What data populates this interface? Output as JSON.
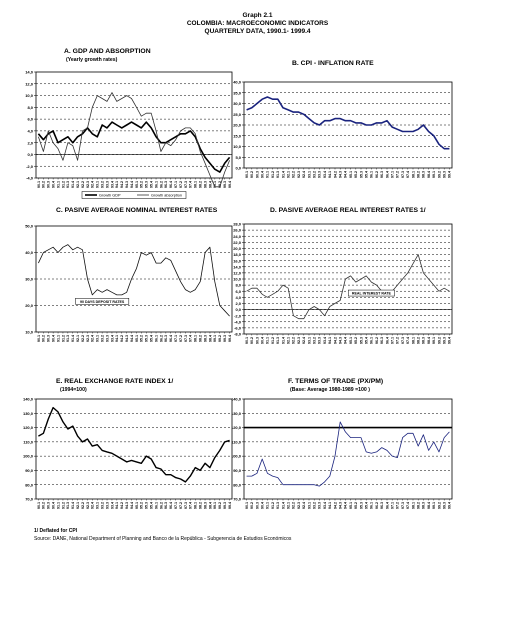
{
  "header": {
    "graph_number": "Graph 2.1",
    "title": "COLOMBIA: MACROECONOMIC INDICATORS",
    "subtitle": "QUARTERLY DATA, 1990.1- 1999.4"
  },
  "panels": {
    "a": {
      "title": "A.  GDP AND ABSORPTION",
      "subtitle": "(Yearly growth rates)"
    },
    "b": {
      "title": "B. CPI - INFLATION RATE",
      "subtitle": ""
    },
    "c": {
      "title": "C.  PASIVE AVERAGE NOMINAL INTEREST RATES",
      "subtitle": ""
    },
    "d": {
      "title": "D.  PASIVE  AVERAGE  REAL  INTEREST  RATES  1/",
      "subtitle": ""
    },
    "e": {
      "title": "E.  REAL EXCHANGE RATE INDEX  1/",
      "subtitle": "(1994=100)"
    },
    "f": {
      "title": "F.  TERMS OF TRADE (PX/PM)",
      "subtitle": "(Base: Average 1980-1989 =100 )"
    }
  },
  "footnotes": {
    "deflated": "1/  Deflated for CPI",
    "source": "Source: DANE, National Department of Planning and Banco de la República - Subgerencia de Estudios Económicos"
  },
  "chart_data": [
    {
      "id": "a",
      "type": "line",
      "title": "A.  GDP AND ABSORPTION",
      "subtitle": "(Yearly growth rates)",
      "ylim": [
        -4,
        14
      ],
      "yticks": [
        "-4,0",
        "-2,0",
        "0,0",
        "2,0",
        "4,0",
        "6,0",
        "8,0",
        "10,0",
        "12,0",
        "14,0"
      ],
      "grid": true,
      "legend": "bottom",
      "x": [
        "90.1",
        "90.2",
        "90.3",
        "90.4",
        "91.1",
        "91.2",
        "91.3",
        "91.4",
        "92.1",
        "92.2",
        "92.3",
        "92.4",
        "93.1",
        "93.2",
        "93.3",
        "93.4",
        "94.1",
        "94.2",
        "94.3",
        "94.4",
        "95.1",
        "95.2",
        "95.3",
        "95.4",
        "96.1",
        "96.2",
        "96.3",
        "96.4",
        "97.1",
        "97.2",
        "97.3",
        "97.4",
        "98.1",
        "98.2",
        "98.3",
        "98.4",
        "99.1",
        "99.2",
        "99.3",
        "99.4"
      ],
      "series": [
        {
          "name": "Growth GDP",
          "values": [
            3.5,
            2.5,
            3.5,
            4.0,
            2.0,
            2.5,
            3.0,
            2.0,
            3.0,
            3.5,
            4.5,
            3.5,
            3.0,
            5.0,
            4.5,
            5.5,
            5.0,
            4.5,
            5.0,
            5.5,
            5.0,
            4.5,
            5.5,
            4.5,
            3.0,
            2.0,
            2.0,
            2.5,
            3.0,
            3.5,
            3.5,
            4.0,
            3.0,
            1.0,
            -0.5,
            -1.5,
            -2.5,
            -3.0,
            -1.5,
            -0.5
          ]
        },
        {
          "name": "Growth absorption",
          "values": [
            3.0,
            0.5,
            4.0,
            2.0,
            1.0,
            -1.0,
            2.0,
            1.5,
            -1.0,
            4.0,
            4.5,
            8.0,
            10.0,
            9.5,
            9.0,
            10.5,
            9.0,
            9.5,
            10.0,
            9.5,
            8.0,
            6.5,
            7.0,
            7.0,
            4.0,
            0.5,
            2.0,
            1.5,
            2.5,
            4.0,
            4.5,
            4.5,
            3.5,
            0.5,
            -1.5,
            -3.5,
            -5.5,
            -5.5,
            -3.0,
            -1.0
          ]
        }
      ]
    },
    {
      "id": "b",
      "type": "line",
      "title": "B. CPI - INFLATION RATE",
      "subtitle": "",
      "ylim": [
        0,
        40
      ],
      "yticks": [
        "0,0",
        "5,0",
        "10,0",
        "15,0",
        "20,0",
        "25,0",
        "30,0",
        "35,0",
        "40,0"
      ],
      "grid": true,
      "x": [
        "90.1",
        "90.2",
        "90.3",
        "90.4",
        "91.1",
        "91.2",
        "91.3",
        "91.4",
        "92.1",
        "92.2",
        "92.3",
        "92.4",
        "93.1",
        "93.2",
        "93.3",
        "93.4",
        "94.1",
        "94.2",
        "94.3",
        "94.4",
        "95.1",
        "95.2",
        "95.3",
        "95.4",
        "96.1",
        "96.2",
        "96.3",
        "96.4",
        "97.1",
        "97.2",
        "97.3",
        "97.4",
        "98.1",
        "98.2",
        "98.3",
        "98.4",
        "99.1",
        "99.2",
        "99.3",
        "99.4"
      ],
      "series": [
        {
          "name": "",
          "values": [
            27,
            28,
            30,
            32,
            33,
            32,
            32,
            28,
            27,
            26,
            26,
            25,
            23,
            21,
            20,
            22,
            22,
            23,
            23,
            22,
            22,
            21,
            21,
            20,
            20,
            21,
            21,
            22,
            19,
            18,
            17,
            17,
            17,
            18,
            20,
            17,
            15,
            11,
            9,
            9
          ]
        }
      ]
    },
    {
      "id": "c",
      "type": "line",
      "title": "C.  PASIVE AVERAGE NOMINAL INTEREST RATES",
      "subtitle": "",
      "ylim": [
        10,
        50
      ],
      "yticks": [
        "10,0",
        "20,0",
        "30,0",
        "40,0",
        "50,0"
      ],
      "grid": true,
      "annotations": [
        "90 DAYS DEPOSIT RATES"
      ],
      "x": [
        "90.1",
        "90.2",
        "90.3",
        "90.4",
        "91.1",
        "91.2",
        "91.3",
        "91.4",
        "92.1",
        "92.2",
        "92.3",
        "92.4",
        "93.1",
        "93.2",
        "93.3",
        "93.4",
        "94.1",
        "94.2",
        "94.3",
        "94.4",
        "95.1",
        "95.2",
        "95.3",
        "95.4",
        "96.1",
        "96.2",
        "96.3",
        "96.4",
        "97.1",
        "97.2",
        "97.3",
        "97.4",
        "98.1",
        "98.2",
        "98.3",
        "98.4",
        "99.1",
        "99.2",
        "99.3",
        "99.4"
      ],
      "series": [
        {
          "name": "90 DAYS DEPOSIT RATES",
          "values": [
            36,
            40,
            41,
            42,
            40,
            42,
            43,
            41,
            42,
            41,
            30,
            24,
            26,
            25,
            26,
            25,
            24,
            24,
            25,
            30,
            34,
            40,
            39,
            40,
            36,
            36,
            38,
            37,
            33,
            29,
            26,
            25,
            26,
            29,
            40,
            42,
            29,
            20,
            18,
            16
          ]
        }
      ]
    },
    {
      "id": "d",
      "type": "line",
      "title": "D.  PASIVE  AVERAGE  REAL  INTEREST  RATES  1/",
      "subtitle": "",
      "ylim": [
        -8,
        28
      ],
      "yticks": [
        "-8,0",
        "-6,0",
        "-4,0",
        "-2,0",
        "0,0",
        "2,0",
        "4,0",
        "6,0",
        "8,0",
        "10,0",
        "12,0",
        "14,0",
        "16,0",
        "18,0",
        "20,0",
        "22,0",
        "24,0",
        "26,0",
        "28,0"
      ],
      "grid": true,
      "annotations": [
        "REAL INTEREST RATE"
      ],
      "x": [
        "90.1",
        "90.2",
        "90.3",
        "90.4",
        "91.1",
        "91.2",
        "91.3",
        "91.4",
        "92.1",
        "92.2",
        "92.3",
        "92.4",
        "93.1",
        "93.2",
        "93.3",
        "93.4",
        "94.1",
        "94.2",
        "94.3",
        "94.4",
        "95.1",
        "95.2",
        "95.3",
        "95.4",
        "96.1",
        "96.2",
        "96.3",
        "96.4",
        "97.1",
        "97.2",
        "97.3",
        "97.4",
        "98.1",
        "98.2",
        "98.3",
        "98.4",
        "99.1",
        "99.2",
        "99.3",
        "99.4"
      ],
      "series": [
        {
          "name": "REAL INTEREST RATE",
          "values": [
            6,
            7,
            7,
            5,
            4,
            5,
            6,
            8,
            7,
            -2,
            -3,
            -3,
            0,
            1,
            0,
            -2,
            1,
            2,
            3,
            10,
            11,
            9,
            10,
            11,
            9,
            8,
            6,
            6,
            6,
            8,
            10,
            12,
            15,
            18,
            12,
            10,
            8,
            6,
            7,
            6
          ]
        }
      ]
    },
    {
      "id": "e",
      "type": "line",
      "title": "E.  REAL EXCHANGE RATE INDEX  1/",
      "subtitle": "(1994=100)",
      "ylim": [
        70,
        140
      ],
      "yticks": [
        "70,0",
        "80,0",
        "90,0",
        "100,0",
        "110,0",
        "120,0",
        "130,0",
        "140,0"
      ],
      "grid": true,
      "x": [
        "90.1",
        "90.2",
        "90.3",
        "90.4",
        "91.1",
        "91.2",
        "91.3",
        "91.4",
        "92.1",
        "92.2",
        "92.3",
        "92.4",
        "93.1",
        "93.2",
        "93.3",
        "93.4",
        "94.1",
        "94.2",
        "94.3",
        "94.4",
        "95.1",
        "95.2",
        "95.3",
        "95.4",
        "96.1",
        "96.2",
        "96.3",
        "96.4",
        "97.1",
        "97.2",
        "97.3",
        "97.4",
        "98.1",
        "98.2",
        "98.3",
        "98.4",
        "99.1",
        "99.2",
        "99.3",
        "99.4"
      ],
      "series": [
        {
          "name": "",
          "values": [
            114,
            116,
            126,
            134,
            131,
            124,
            119,
            121,
            114,
            110,
            112,
            107,
            108,
            104,
            103,
            102,
            100,
            98,
            96,
            97,
            96,
            95,
            100,
            98,
            92,
            91,
            87,
            87,
            85,
            84,
            82,
            86,
            92,
            90,
            95,
            92,
            99,
            104,
            110,
            111
          ]
        }
      ]
    },
    {
      "id": "f",
      "type": "line",
      "title": "F.  TERMS OF TRADE (PX/PM)",
      "subtitle": "(Base: Average 1980-1989 =100 )",
      "ylim": [
        70,
        140
      ],
      "yticks": [
        "70,0",
        "80,0",
        "90,0",
        "100,0",
        "110,0",
        "120,0",
        "130,0",
        "140,0"
      ],
      "grid": true,
      "reference_line": 120,
      "x": [
        "90.1",
        "90.2",
        "90.3",
        "90.4",
        "91.1",
        "91.2",
        "91.3",
        "91.4",
        "92.1",
        "92.2",
        "92.3",
        "92.4",
        "93.1",
        "93.2",
        "93.3",
        "93.4",
        "94.1",
        "94.2",
        "94.3",
        "94.4",
        "95.1",
        "95.2",
        "95.3",
        "95.4",
        "96.1",
        "96.2",
        "96.3",
        "96.4",
        "97.1",
        "97.2",
        "97.3",
        "97.4",
        "98.1",
        "98.2",
        "98.3",
        "98.4",
        "99.1",
        "99.2",
        "99.3",
        "99.4"
      ],
      "series": [
        {
          "name": "",
          "values": [
            86,
            86,
            88,
            98,
            88,
            86,
            85,
            80,
            80,
            80,
            80,
            80,
            80,
            80,
            79,
            82,
            86,
            100,
            124,
            117,
            113,
            113,
            113,
            103,
            102,
            103,
            106,
            104,
            100,
            99,
            113,
            116,
            116,
            107,
            115,
            104,
            110,
            103,
            113,
            117
          ]
        }
      ]
    }
  ]
}
